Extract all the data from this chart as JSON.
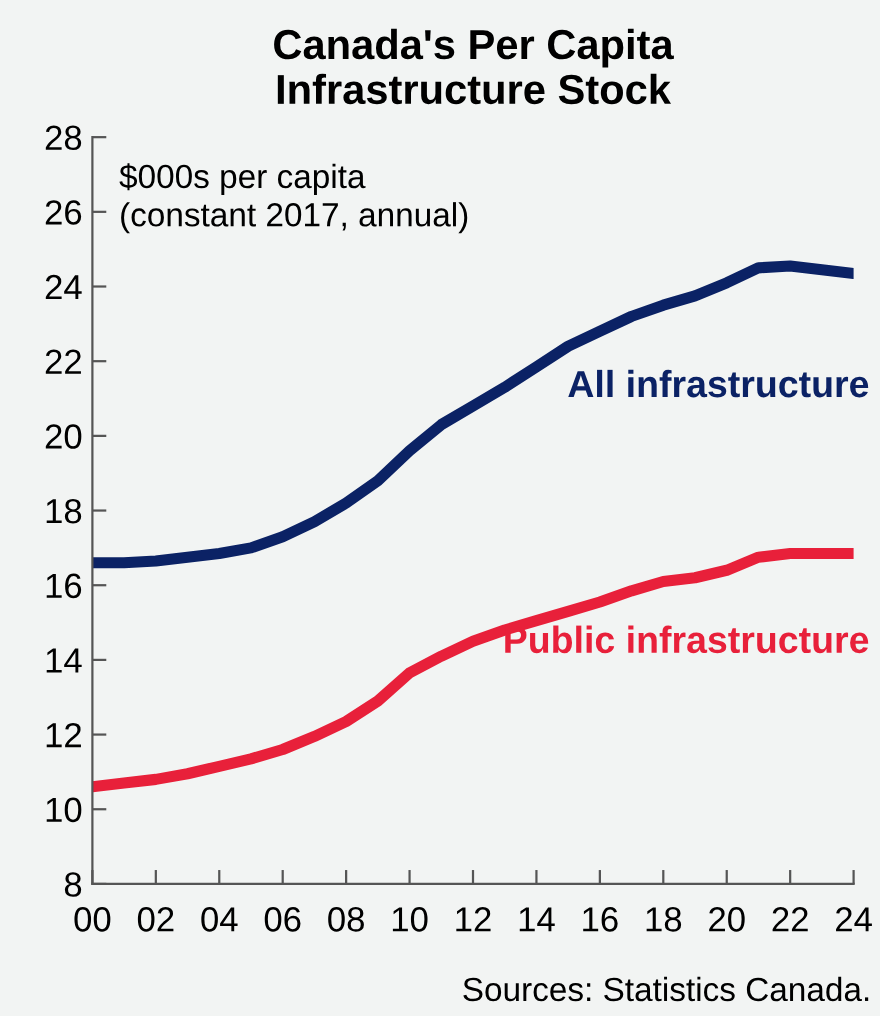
{
  "chart_data": {
    "type": "line",
    "title": "Canada's Per Capita\nInfrastructure Stock",
    "x": [
      2000,
      2001,
      2002,
      2003,
      2004,
      2005,
      2006,
      2007,
      2008,
      2009,
      2010,
      2011,
      2012,
      2013,
      2014,
      2015,
      2016,
      2017,
      2018,
      2019,
      2020,
      2021,
      2022,
      2023,
      2024
    ],
    "series": [
      {
        "name": "All infrastructure",
        "color": "#0b2265",
        "values": [
          16.6,
          16.6,
          16.65,
          16.75,
          16.85,
          17.0,
          17.3,
          17.7,
          18.2,
          18.8,
          19.6,
          20.3,
          20.8,
          21.3,
          21.85,
          22.4,
          22.8,
          23.2,
          23.5,
          23.75,
          24.1,
          24.5,
          24.55,
          24.45,
          24.35
        ]
      },
      {
        "name": "Public infrastructure",
        "color": "#e8203a",
        "values": [
          10.6,
          10.7,
          10.8,
          10.95,
          11.15,
          11.35,
          11.6,
          11.95,
          12.35,
          12.9,
          13.65,
          14.1,
          14.5,
          14.8,
          15.05,
          15.3,
          15.55,
          15.85,
          16.1,
          16.2,
          16.4,
          16.75,
          16.85,
          16.85,
          16.85
        ]
      }
    ],
    "xlim": [
      2000,
      2024
    ],
    "xticks": [
      {
        "value": 2000,
        "label": "00"
      },
      {
        "value": 2002,
        "label": "02"
      },
      {
        "value": 2004,
        "label": "04"
      },
      {
        "value": 2006,
        "label": "06"
      },
      {
        "value": 2008,
        "label": "08"
      },
      {
        "value": 2010,
        "label": "10"
      },
      {
        "value": 2012,
        "label": "12"
      },
      {
        "value": 2014,
        "label": "14"
      },
      {
        "value": 2016,
        "label": "16"
      },
      {
        "value": 2018,
        "label": "18"
      },
      {
        "value": 2020,
        "label": "20"
      },
      {
        "value": 2022,
        "label": "22"
      },
      {
        "value": 2024,
        "label": "24"
      }
    ],
    "ylim": [
      8,
      28
    ],
    "yticks": [
      8,
      10,
      12,
      14,
      16,
      18,
      20,
      22,
      24,
      26,
      28
    ],
    "grid": false,
    "legend": false,
    "line_style": "solid",
    "marker": "none",
    "annotations": [
      "$000s per capita\n(constant 2017, annual)",
      "Sources: Statistics Canada."
    ]
  }
}
